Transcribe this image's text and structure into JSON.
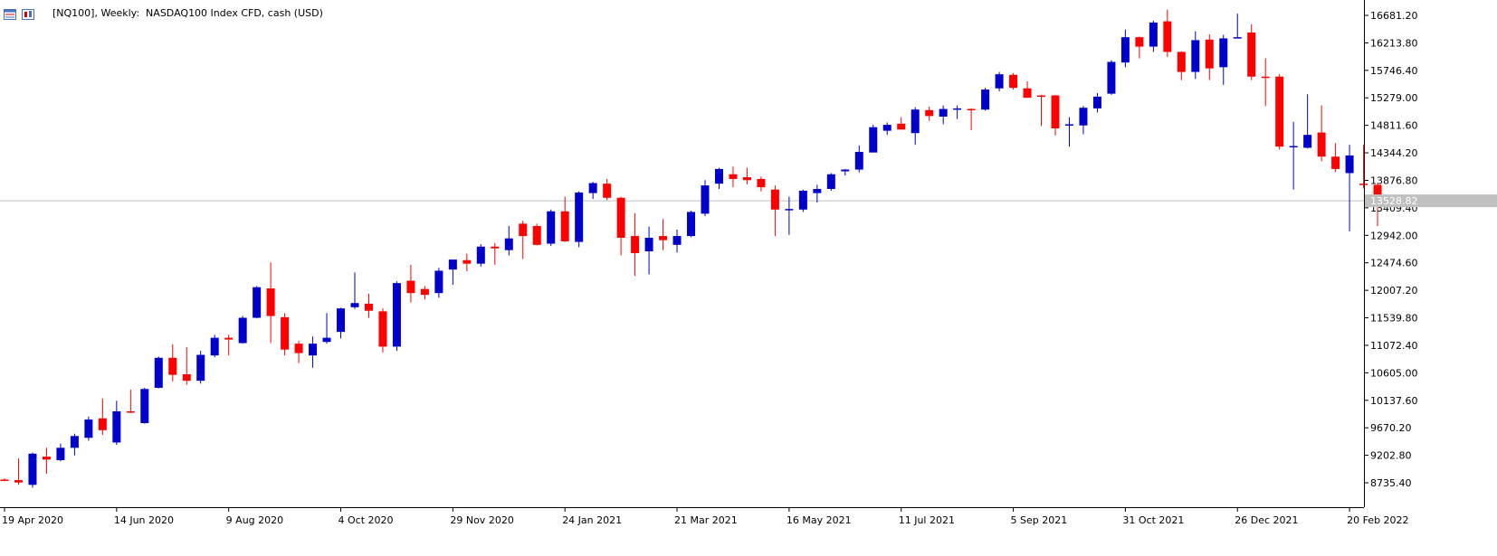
{
  "header": {
    "title": "[NQ100], Weekly:  NASDAQ100 Index CFD, cash (USD)",
    "icon_left": "chart-list-icon",
    "icon_right": "chart-candles-icon"
  },
  "colors": {
    "bull": "#0000cc",
    "bear": "#ff0000",
    "wick": "#000000",
    "axis": "#000000",
    "priceline": "#c0c0c0",
    "pricelabel_bg": "#c0c0c0"
  },
  "chart_data": {
    "type": "candlestick",
    "current_price": "13528.82",
    "current_price_value": 13528.82,
    "ylim": [
      8500,
      16890
    ],
    "y_ticks": [
      "16681.20",
      "16213.80",
      "15746.40",
      "15279.00",
      "14811.60",
      "14344.20",
      "13876.80",
      "13409.40",
      "12942.00",
      "12474.60",
      "12007.20",
      "11539.80",
      "11072.40",
      "10605.00",
      "10137.60",
      "9670.20",
      "9202.80",
      "8735.40"
    ],
    "y_tick_values": [
      16681.2,
      16213.8,
      15746.4,
      15279.0,
      14811.6,
      14344.2,
      13876.8,
      13409.4,
      12942.0,
      12474.6,
      12007.2,
      11539.8,
      11072.4,
      10605.0,
      10137.6,
      9670.2,
      9202.8,
      8735.4
    ],
    "x_ticks": [
      {
        "label": "19 Apr 2020",
        "index": 0
      },
      {
        "label": "14 Jun 2020",
        "index": 8
      },
      {
        "label": "9 Aug 2020",
        "index": 16
      },
      {
        "label": "4 Oct 2020",
        "index": 24
      },
      {
        "label": "29 Nov 2020",
        "index": 32
      },
      {
        "label": "24 Jan 2021",
        "index": 40
      },
      {
        "label": "21 Mar 2021",
        "index": 48
      },
      {
        "label": "16 May 2021",
        "index": 56
      },
      {
        "label": "11 Jul 2021",
        "index": 64
      },
      {
        "label": "5 Sep 2021",
        "index": 72
      },
      {
        "label": "31 Oct 2021",
        "index": 80
      },
      {
        "label": "26 Dec 2021",
        "index": 88
      },
      {
        "label": "20 Feb 2022",
        "index": 96
      }
    ],
    "candles": [
      {
        "o": 8790,
        "h": 8810,
        "l": 8760,
        "c": 8780
      },
      {
        "o": 8780,
        "h": 9150,
        "l": 8700,
        "c": 8740
      },
      {
        "o": 8700,
        "h": 9250,
        "l": 8650,
        "c": 9230
      },
      {
        "o": 9180,
        "h": 9330,
        "l": 8890,
        "c": 9130
      },
      {
        "o": 9120,
        "h": 9400,
        "l": 9100,
        "c": 9330
      },
      {
        "o": 9330,
        "h": 9570,
        "l": 9200,
        "c": 9530
      },
      {
        "o": 9500,
        "h": 9860,
        "l": 9450,
        "c": 9810
      },
      {
        "o": 9830,
        "h": 10170,
        "l": 9550,
        "c": 9630
      },
      {
        "o": 9420,
        "h": 10130,
        "l": 9380,
        "c": 9950
      },
      {
        "o": 9950,
        "h": 10320,
        "l": 9920,
        "c": 9940
      },
      {
        "o": 9750,
        "h": 10350,
        "l": 9740,
        "c": 10330
      },
      {
        "o": 10350,
        "h": 10880,
        "l": 10340,
        "c": 10860
      },
      {
        "o": 10860,
        "h": 11090,
        "l": 10460,
        "c": 10570
      },
      {
        "o": 10580,
        "h": 11040,
        "l": 10400,
        "c": 10470
      },
      {
        "o": 10470,
        "h": 10980,
        "l": 10420,
        "c": 10910
      },
      {
        "o": 10900,
        "h": 11250,
        "l": 10870,
        "c": 11200
      },
      {
        "o": 11200,
        "h": 11250,
        "l": 10900,
        "c": 11170
      },
      {
        "o": 11110,
        "h": 11570,
        "l": 11100,
        "c": 11540
      },
      {
        "o": 11540,
        "h": 12080,
        "l": 11530,
        "c": 12060
      },
      {
        "o": 12040,
        "h": 12480,
        "l": 11110,
        "c": 11570
      },
      {
        "o": 11550,
        "h": 11620,
        "l": 10900,
        "c": 11000
      },
      {
        "o": 11100,
        "h": 11150,
        "l": 10770,
        "c": 10940
      },
      {
        "o": 10900,
        "h": 11220,
        "l": 10690,
        "c": 11100
      },
      {
        "o": 11130,
        "h": 11620,
        "l": 11100,
        "c": 11200
      },
      {
        "o": 11300,
        "h": 11710,
        "l": 11190,
        "c": 11700
      },
      {
        "o": 11720,
        "h": 12310,
        "l": 11690,
        "c": 11790
      },
      {
        "o": 11780,
        "h": 11950,
        "l": 11540,
        "c": 11660
      },
      {
        "o": 11650,
        "h": 11700,
        "l": 10950,
        "c": 11050
      },
      {
        "o": 11050,
        "h": 12160,
        "l": 10980,
        "c": 12130
      },
      {
        "o": 12170,
        "h": 12440,
        "l": 11800,
        "c": 11960
      },
      {
        "o": 12030,
        "h": 12080,
        "l": 11850,
        "c": 11930
      },
      {
        "o": 11960,
        "h": 12390,
        "l": 11880,
        "c": 12340
      },
      {
        "o": 12360,
        "h": 12500,
        "l": 12100,
        "c": 12530
      },
      {
        "o": 12520,
        "h": 12630,
        "l": 12330,
        "c": 12460
      },
      {
        "o": 12460,
        "h": 12790,
        "l": 12410,
        "c": 12750
      },
      {
        "o": 12750,
        "h": 12810,
        "l": 12440,
        "c": 12720
      },
      {
        "o": 12690,
        "h": 13100,
        "l": 12600,
        "c": 12890
      },
      {
        "o": 13140,
        "h": 13190,
        "l": 12540,
        "c": 12930
      },
      {
        "o": 13100,
        "h": 13140,
        "l": 12770,
        "c": 12780
      },
      {
        "o": 12800,
        "h": 13380,
        "l": 12760,
        "c": 13350
      },
      {
        "o": 13350,
        "h": 13600,
        "l": 12830,
        "c": 12840
      },
      {
        "o": 12830,
        "h": 13690,
        "l": 12740,
        "c": 13670
      },
      {
        "o": 13660,
        "h": 13850,
        "l": 13560,
        "c": 13830
      },
      {
        "o": 13820,
        "h": 13900,
        "l": 13540,
        "c": 13580
      },
      {
        "o": 13580,
        "h": 13600,
        "l": 12600,
        "c": 12900
      },
      {
        "o": 12930,
        "h": 13320,
        "l": 12250,
        "c": 12640
      },
      {
        "o": 12670,
        "h": 13090,
        "l": 12280,
        "c": 12900
      },
      {
        "o": 12930,
        "h": 13220,
        "l": 12690,
        "c": 12860
      },
      {
        "o": 12780,
        "h": 13040,
        "l": 12650,
        "c": 12930
      },
      {
        "o": 12930,
        "h": 13360,
        "l": 12910,
        "c": 13340
      },
      {
        "o": 13310,
        "h": 13880,
        "l": 13270,
        "c": 13790
      },
      {
        "o": 13820,
        "h": 14090,
        "l": 13730,
        "c": 14070
      },
      {
        "o": 13980,
        "h": 14110,
        "l": 13760,
        "c": 13900
      },
      {
        "o": 13930,
        "h": 14090,
        "l": 13810,
        "c": 13880
      },
      {
        "o": 13900,
        "h": 13940,
        "l": 13690,
        "c": 13760
      },
      {
        "o": 13720,
        "h": 13790,
        "l": 12930,
        "c": 13380
      },
      {
        "o": 13370,
        "h": 13600,
        "l": 12950,
        "c": 13390
      },
      {
        "o": 13380,
        "h": 13720,
        "l": 13340,
        "c": 13700
      },
      {
        "o": 13660,
        "h": 13800,
        "l": 13500,
        "c": 13730
      },
      {
        "o": 13730,
        "h": 14000,
        "l": 13700,
        "c": 13980
      },
      {
        "o": 14030,
        "h": 14070,
        "l": 13960,
        "c": 14060
      },
      {
        "o": 14060,
        "h": 14470,
        "l": 14010,
        "c": 14360
      },
      {
        "o": 14350,
        "h": 14820,
        "l": 14360,
        "c": 14780
      },
      {
        "o": 14720,
        "h": 14860,
        "l": 14650,
        "c": 14820
      },
      {
        "o": 14840,
        "h": 14950,
        "l": 14760,
        "c": 14740
      },
      {
        "o": 14680,
        "h": 15120,
        "l": 14480,
        "c": 15080
      },
      {
        "o": 15070,
        "h": 15130,
        "l": 14890,
        "c": 14970
      },
      {
        "o": 14960,
        "h": 15150,
        "l": 14830,
        "c": 15090
      },
      {
        "o": 15090,
        "h": 15150,
        "l": 14920,
        "c": 15100
      },
      {
        "o": 15090,
        "h": 15100,
        "l": 14730,
        "c": 15080
      },
      {
        "o": 15080,
        "h": 15450,
        "l": 15060,
        "c": 15420
      },
      {
        "o": 15440,
        "h": 15720,
        "l": 15390,
        "c": 15680
      },
      {
        "o": 15670,
        "h": 15700,
        "l": 15420,
        "c": 15450
      },
      {
        "o": 15440,
        "h": 15560,
        "l": 15280,
        "c": 15280
      },
      {
        "o": 15320,
        "h": 15330,
        "l": 14800,
        "c": 15300
      },
      {
        "o": 15320,
        "h": 15330,
        "l": 14640,
        "c": 14760
      },
      {
        "o": 14830,
        "h": 14950,
        "l": 14450,
        "c": 14830
      },
      {
        "o": 14810,
        "h": 15140,
        "l": 14660,
        "c": 15110
      },
      {
        "o": 15100,
        "h": 15360,
        "l": 15030,
        "c": 15300
      },
      {
        "o": 15350,
        "h": 15920,
        "l": 15330,
        "c": 15890
      },
      {
        "o": 15880,
        "h": 16440,
        "l": 15800,
        "c": 16310
      },
      {
        "o": 16310,
        "h": 16320,
        "l": 15950,
        "c": 16150
      },
      {
        "o": 16150,
        "h": 16590,
        "l": 16060,
        "c": 16560
      },
      {
        "o": 16580,
        "h": 16780,
        "l": 15970,
        "c": 16060
      },
      {
        "o": 16060,
        "h": 16070,
        "l": 15580,
        "c": 15720
      },
      {
        "o": 15720,
        "h": 16410,
        "l": 15600,
        "c": 16260
      },
      {
        "o": 16270,
        "h": 16360,
        "l": 15580,
        "c": 15780
      },
      {
        "o": 15800,
        "h": 16350,
        "l": 15500,
        "c": 16290
      },
      {
        "o": 16300,
        "h": 16710,
        "l": 16290,
        "c": 16310
      },
      {
        "o": 16390,
        "h": 16530,
        "l": 15580,
        "c": 15640
      },
      {
        "o": 15640,
        "h": 15950,
        "l": 15140,
        "c": 15630
      },
      {
        "o": 15640,
        "h": 15680,
        "l": 14400,
        "c": 14450
      },
      {
        "o": 14440,
        "h": 14870,
        "l": 13720,
        "c": 14460
      },
      {
        "o": 14430,
        "h": 15340,
        "l": 14420,
        "c": 14650
      },
      {
        "o": 14690,
        "h": 15150,
        "l": 14200,
        "c": 14280
      },
      {
        "o": 14280,
        "h": 14510,
        "l": 14020,
        "c": 14070
      },
      {
        "o": 14000,
        "h": 14480,
        "l": 13010,
        "c": 14300
      },
      {
        "o": 13820,
        "h": 14480,
        "l": 13740,
        "c": 13800
      },
      {
        "o": 13800,
        "h": 13830,
        "l": 13100,
        "c": 13528.82
      }
    ]
  }
}
